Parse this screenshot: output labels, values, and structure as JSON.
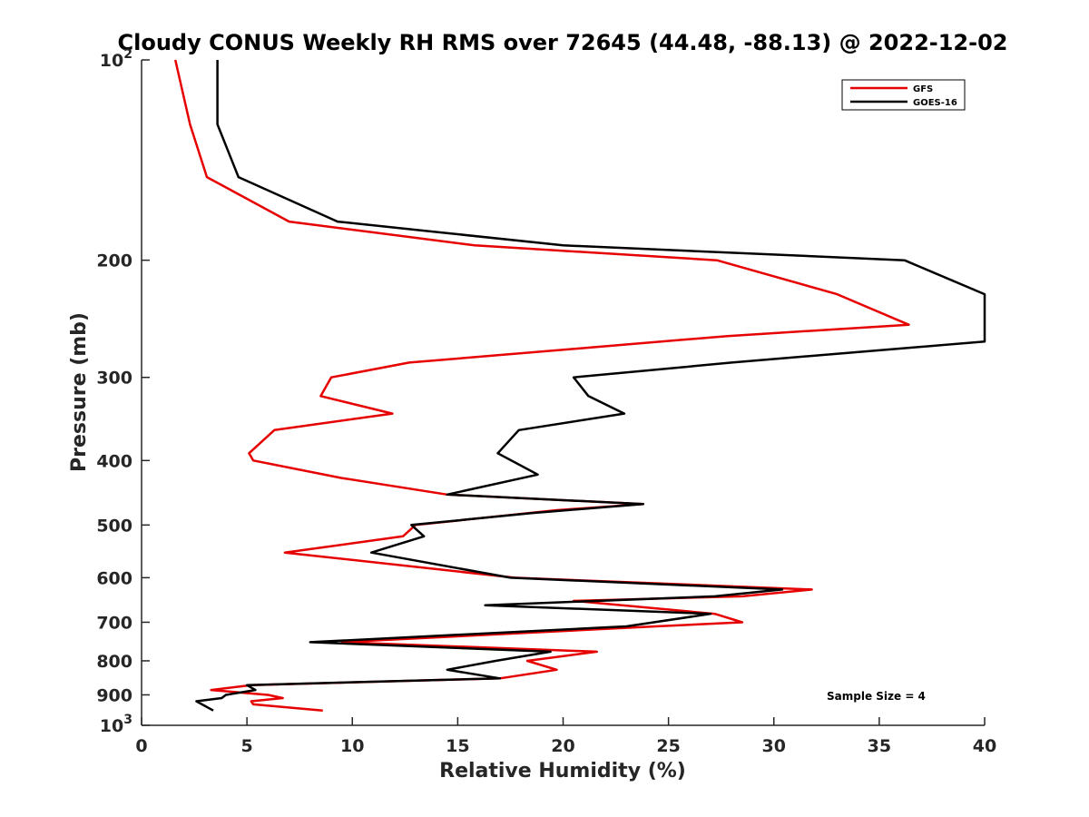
{
  "chart_data": {
    "type": "line",
    "title": "Cloudy CONUS Weekly RH RMS over 72645 (44.48, -88.13) @ 2022-12-02",
    "xlabel": "Relative Humidity (%)",
    "ylabel": "Pressure (mb)",
    "xlim": [
      0,
      40
    ],
    "ylim": [
      100,
      1000
    ],
    "y_scale": "log",
    "y_reversed": true,
    "grid": false,
    "legend_position": "top-right",
    "annotation": "Sample Size = 4",
    "x_ticks": [
      "0",
      "5",
      "10",
      "15",
      "20",
      "25",
      "30",
      "35",
      "40"
    ],
    "y_ticks": [
      {
        "value": 100,
        "base": "10",
        "exp": "2"
      },
      {
        "value": 200,
        "label": "200"
      },
      {
        "value": 300,
        "label": "300"
      },
      {
        "value": 400,
        "label": "400"
      },
      {
        "value": 500,
        "label": "500"
      },
      {
        "value": 600,
        "label": "600"
      },
      {
        "value": 700,
        "label": "700"
      },
      {
        "value": 800,
        "label": "800"
      },
      {
        "value": 900,
        "label": "900"
      },
      {
        "value": 1000,
        "base": "10",
        "exp": "3"
      }
    ],
    "series": [
      {
        "name": "GFS",
        "color": "#e60000",
        "points": [
          [
            1.6,
            100
          ],
          [
            2.3,
            125
          ],
          [
            3.1,
            150
          ],
          [
            7.0,
            175
          ],
          [
            15.8,
            190
          ],
          [
            27.3,
            200
          ],
          [
            33.0,
            225
          ],
          [
            36.4,
            250
          ],
          [
            27.8,
            260
          ],
          [
            12.7,
            285
          ],
          [
            9.0,
            300
          ],
          [
            8.5,
            320
          ],
          [
            11.9,
            340
          ],
          [
            6.3,
            360
          ],
          [
            5.1,
            390
          ],
          [
            5.3,
            400
          ],
          [
            9.5,
            425
          ],
          [
            14.5,
            450
          ],
          [
            23.8,
            465
          ],
          [
            19.7,
            475
          ],
          [
            13.0,
            500
          ],
          [
            12.4,
            520
          ],
          [
            6.8,
            550
          ],
          [
            17.7,
            600
          ],
          [
            31.8,
            625
          ],
          [
            28.5,
            640
          ],
          [
            20.5,
            650
          ],
          [
            27.2,
            680
          ],
          [
            28.5,
            700
          ],
          [
            24.4,
            710
          ],
          [
            9.5,
            750
          ],
          [
            21.6,
            775
          ],
          [
            18.3,
            800
          ],
          [
            19.7,
            825
          ],
          [
            17.0,
            850
          ],
          [
            5.2,
            870
          ],
          [
            3.3,
            885
          ],
          [
            6.0,
            900
          ],
          [
            6.7,
            910
          ],
          [
            5.2,
            920
          ],
          [
            5.3,
            930
          ],
          [
            8.6,
            950
          ]
        ]
      },
      {
        "name": "GOES-16",
        "color": "#000000",
        "points": [
          [
            3.6,
            100
          ],
          [
            3.6,
            125
          ],
          [
            4.6,
            150
          ],
          [
            9.3,
            175
          ],
          [
            20.0,
            190
          ],
          [
            36.2,
            200
          ],
          [
            40.0,
            225
          ],
          [
            40.0,
            250
          ],
          [
            40.0,
            265
          ],
          [
            28.0,
            285
          ],
          [
            20.5,
            300
          ],
          [
            21.2,
            320
          ],
          [
            22.9,
            340
          ],
          [
            17.9,
            360
          ],
          [
            16.9,
            390
          ],
          [
            18.8,
            420
          ],
          [
            14.5,
            450
          ],
          [
            23.8,
            465
          ],
          [
            18.5,
            480
          ],
          [
            12.8,
            500
          ],
          [
            13.4,
            520
          ],
          [
            10.9,
            550
          ],
          [
            17.5,
            600
          ],
          [
            30.4,
            625
          ],
          [
            27.2,
            640
          ],
          [
            16.3,
            660
          ],
          [
            27.0,
            680
          ],
          [
            23.0,
            710
          ],
          [
            8.0,
            750
          ],
          [
            19.4,
            775
          ],
          [
            16.8,
            800
          ],
          [
            14.5,
            825
          ],
          [
            17.0,
            850
          ],
          [
            5.0,
            870
          ],
          [
            5.4,
            885
          ],
          [
            4.0,
            900
          ],
          [
            3.8,
            910
          ],
          [
            2.6,
            920
          ],
          [
            3.4,
            950
          ]
        ]
      }
    ]
  }
}
